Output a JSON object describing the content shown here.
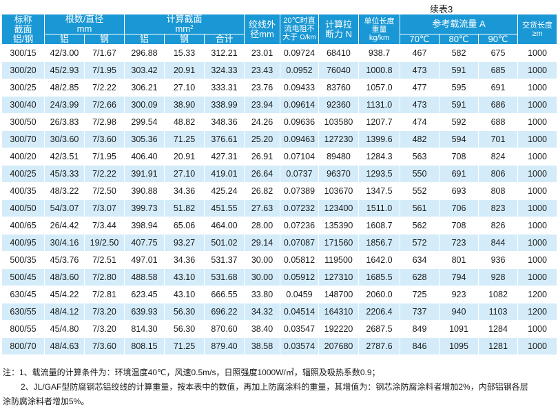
{
  "caption": "续表3",
  "headers": {
    "spec": [
      "标称",
      "截面",
      "铝/钢"
    ],
    "strands": [
      "根数/直径",
      "mm"
    ],
    "strand_al": "铝",
    "strand_steel": "钢",
    "area": "计算截面",
    "area_unit": "mm",
    "area_unit_sup": "2",
    "area_al": "铝",
    "area_steel": "钢",
    "area_total": "合计",
    "od": [
      "绞线外",
      "径mm"
    ],
    "dcr": [
      "20℃时直",
      "流电阻不",
      "大于"
    ],
    "dcr_unit": "Ω/km",
    "rts": [
      "计算拉",
      "断力 N"
    ],
    "weight": [
      "单位长度",
      "重量",
      "kg/km"
    ],
    "ampacity": "参考载流量 A",
    "amp_70": "70℃",
    "amp_80": "80℃",
    "amp_90": "90℃",
    "length": [
      "交货长度",
      "≥m"
    ]
  },
  "rows": [
    [
      "300/15",
      "42/3.00",
      "7/1.67",
      "296.88",
      "15.33",
      "312.21",
      "23.01",
      "0.09724",
      "68410",
      "938.7",
      "467",
      "582",
      "675",
      "1000"
    ],
    [
      "300/20",
      "45/2.93",
      "7/1.95",
      "303.42",
      "20.91",
      "324.33",
      "23.43",
      "0.0952",
      "76040",
      "1000.8",
      "473",
      "591",
      "685",
      "1000"
    ],
    [
      "300/25",
      "48/2.85",
      "7/2.22",
      "306.21",
      "27.10",
      "333.31",
      "23.76",
      "0.09433",
      "83760",
      "1057.0",
      "477",
      "595",
      "691",
      "1000"
    ],
    [
      "300/40",
      "24/3.99",
      "7/2.66",
      "300.09",
      "38.90",
      "338.99",
      "23.94",
      "0.09614",
      "92360",
      "1131.0",
      "473",
      "591",
      "686",
      "1000"
    ],
    [
      "300/50",
      "26/3.83",
      "7/2.98",
      "299.54",
      "48.82",
      "348.36",
      "24.26",
      "0.09636",
      "103580",
      "1207.7",
      "474",
      "592",
      "688",
      "1000"
    ],
    [
      "300/70",
      "30/3.60",
      "7/3.60",
      "305.36",
      "71.25",
      "376.61",
      "25.20",
      "0.09463",
      "127230",
      "1399.6",
      "482",
      "594",
      "701",
      "1000"
    ],
    [
      "400/20",
      "42/3.51",
      "7/1.95",
      "406.40",
      "20.91",
      "427.31",
      "26.91",
      "0.07104",
      "89480",
      "1284.3",
      "563",
      "708",
      "824",
      "1000"
    ],
    [
      "400/25",
      "45/3.33",
      "7/2.22",
      "391.91",
      "27.10",
      "419.01",
      "26.64",
      "0.0737",
      "96370",
      "1293.5",
      "550",
      "691",
      "806",
      "1000"
    ],
    [
      "400/35",
      "48/3.22",
      "7/2.50",
      "390.88",
      "34.36",
      "425.24",
      "26.82",
      "0.07389",
      "103670",
      "1347.5",
      "552",
      "693",
      "808",
      "1000"
    ],
    [
      "400/50",
      "54/3.07",
      "7/3.07",
      "399.73",
      "51.82",
      "451.55",
      "27.63",
      "0.07232",
      "123400",
      "1511.0",
      "561",
      "706",
      "823",
      "1000"
    ],
    [
      "400/65",
      "26/4.42",
      "7/3.44",
      "398.94",
      "65.06",
      "464.00",
      "28.00",
      "0.07236",
      "135390",
      "1608.7",
      "562",
      "708",
      "826",
      "1000"
    ],
    [
      "400/95",
      "30/4.16",
      "19/2.50",
      "407.75",
      "93.27",
      "501.02",
      "29.14",
      "0.07087",
      "171560",
      "1856.7",
      "572",
      "723",
      "844",
      "1000"
    ],
    [
      "500/35",
      "45/3.76",
      "7/2.51",
      "497.01",
      "34.36",
      "531.37",
      "30.00",
      "0.05812",
      "119500",
      "1642.0",
      "634",
      "801",
      "936",
      "1000"
    ],
    [
      "500/45",
      "48/3.60",
      "7/2.80",
      "488.58",
      "43.10",
      "531.68",
      "30.00",
      "0.05912",
      "127310",
      "1685.5",
      "628",
      "794",
      "928",
      "1000"
    ],
    [
      "630/45",
      "45/4.22",
      "7/2.81",
      "623.45",
      "43.10",
      "666.55",
      "33.80",
      "0.0459",
      "148700",
      "2060.0",
      "725",
      "923",
      "1082",
      "1200"
    ],
    [
      "630/55",
      "48/4.12",
      "7/3.20",
      "639.93",
      "56.30",
      "696.22",
      "34.32",
      "0.04514",
      "164310",
      "2206.4",
      "737",
      "940",
      "1103",
      "1200"
    ],
    [
      "800/55",
      "45/4.80",
      "7/3.20",
      "814.30",
      "56.30",
      "870.60",
      "38.40",
      "0.03547",
      "192220",
      "2687.5",
      "849",
      "1091",
      "1284",
      "1000"
    ],
    [
      "800/70",
      "48/4.63",
      "7/3.60",
      "808.15",
      "71.25",
      "879.40",
      "38.58",
      "0.03574",
      "207680",
      "2787.6",
      "846",
      "1095",
      "1281",
      "1000"
    ]
  ],
  "notes": [
    "注：1、载流量的计算条件为：环境温度40℃，风速0.5m/s，日照强度1000W/㎡，辐照及吸热系数0.9；",
    "2、JL/GAF型防腐钢芯铝绞线的计算重量，按本表中的数值，再加上防腐涂料的重量，其增值为：钢芯涂防腐涂料者增加2%，内部铝钢各层",
    "涂防腐涂料者增加5%。"
  ],
  "colors": {
    "header_bg": "#1a98d5",
    "stripe": "#d4ecf9",
    "header_text": "#ffffff"
  }
}
